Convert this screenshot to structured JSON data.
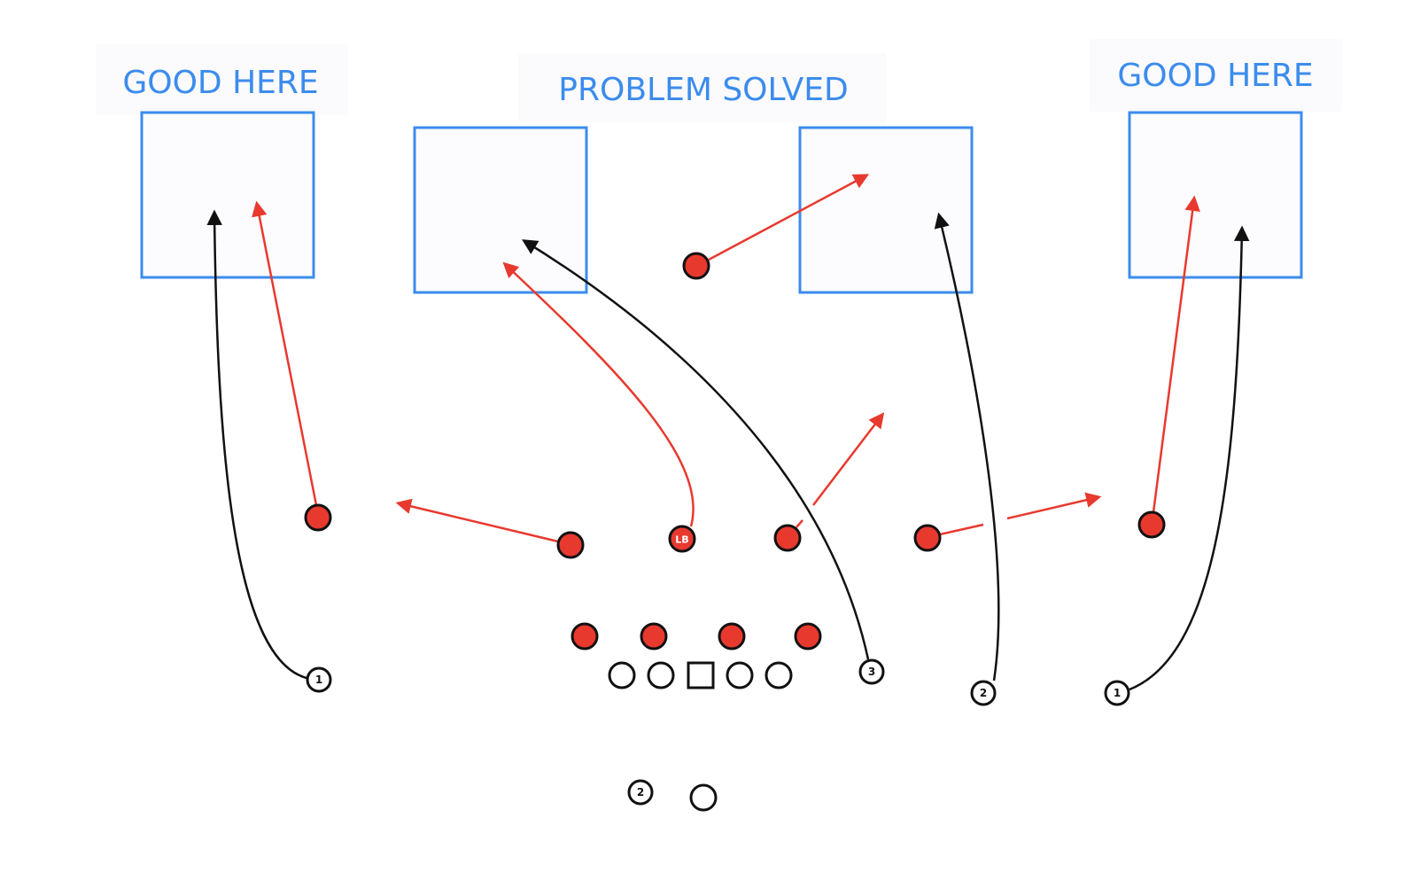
{
  "labels": {
    "left": "GOOD HERE",
    "center": "PROBLEM SOLVED",
    "right": "GOOD HERE"
  },
  "defense": {
    "linebacker_label": "LB"
  },
  "offense": {
    "receiver_numbers": [
      "1",
      "3",
      "2",
      "1"
    ],
    "back_number": "2"
  },
  "colors": {
    "zone_blue": "#3b8ced",
    "defense_red": "#e8392f",
    "offense_route": "#111111"
  }
}
